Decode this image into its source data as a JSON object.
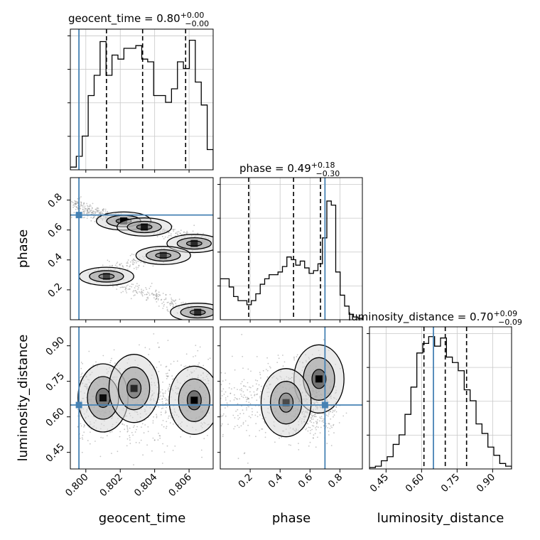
{
  "chart_data": {
    "type": "corner",
    "parameters": [
      "geocent_time",
      "phase",
      "luminosity_distance"
    ],
    "truths": {
      "geocent_time": 0.7996,
      "phase": 0.7,
      "luminosity_distance": 0.65
    },
    "truth_color": "#4682b4",
    "panel_titles": [
      {
        "text": "geocent_time = 0.80",
        "sup": "+0.00",
        "sub": "−0.00"
      },
      {
        "text": "phase = 0.49",
        "sup": "+0.18",
        "sub": "−0.30"
      },
      {
        "text": "luminosity_distance = 0.70",
        "sup": "+0.09",
        "sub": "−0.09"
      }
    ],
    "axis_labels": {
      "x": [
        "geocent_time",
        "phase",
        "luminosity_distance"
      ],
      "y": [
        "phase",
        "luminosity_distance"
      ]
    },
    "ranges": {
      "geocent_time": [
        0.7991,
        0.8074
      ],
      "phase": [
        0.0,
        0.95
      ],
      "luminosity_distance": [
        0.38,
        0.98
      ]
    },
    "ticks": {
      "geocent_time": [
        "0.800",
        "0.802",
        "0.804",
        "0.806"
      ],
      "phase": [
        "0.2",
        "0.4",
        "0.6",
        "0.8"
      ],
      "luminosity_distance": [
        "0.45",
        "0.60",
        "0.75",
        "0.90"
      ]
    },
    "quantiles": {
      "geocent_time": [
        0.8012,
        0.8033,
        0.8058
      ],
      "phase": [
        0.19,
        0.49,
        0.67
      ],
      "luminosity_distance": [
        0.61,
        0.7,
        0.79
      ]
    },
    "histograms": {
      "geocent_time": {
        "edges_start": 0.7991,
        "edges_end": 0.8074,
        "counts": [
          0.02,
          0.1,
          0.25,
          0.55,
          0.7,
          0.95,
          0.7,
          0.85,
          0.82,
          0.9,
          0.9,
          0.92,
          0.82,
          0.8,
          0.55,
          0.55,
          0.5,
          0.6,
          0.8,
          0.75,
          0.96,
          0.65,
          0.48,
          0.15
        ]
      },
      "phase": {
        "edges_start": 0.0,
        "edges_end": 0.95,
        "counts": [
          0.3,
          0.3,
          0.24,
          0.17,
          0.14,
          0.14,
          0.11,
          0.14,
          0.19,
          0.26,
          0.3,
          0.33,
          0.33,
          0.35,
          0.39,
          0.46,
          0.44,
          0.4,
          0.43,
          0.38,
          0.34,
          0.36,
          0.41,
          0.6,
          0.87,
          0.84,
          0.35,
          0.18,
          0.1,
          0.04,
          0.02,
          0.01
        ]
      },
      "luminosity_distance": {
        "edges_start": 0.38,
        "edges_end": 0.98,
        "counts": [
          0.01,
          0.02,
          0.06,
          0.09,
          0.18,
          0.25,
          0.4,
          0.6,
          0.85,
          0.92,
          0.97,
          0.9,
          0.96,
          0.82,
          0.78,
          0.72,
          0.58,
          0.5,
          0.33,
          0.26,
          0.16,
          0.1,
          0.04,
          0.02
        ]
      }
    },
    "density_peaks": {
      "phase_vs_geocent_time": [
        {
          "x": 0.8022,
          "y": 0.66,
          "w": 1.0
        },
        {
          "x": 0.8034,
          "y": 0.62,
          "w": 0.8
        },
        {
          "x": 0.8063,
          "y": 0.51,
          "w": 0.7
        },
        {
          "x": 0.8045,
          "y": 0.43,
          "w": 0.6
        },
        {
          "x": 0.8012,
          "y": 0.29,
          "w": 0.55
        },
        {
          "x": 0.8065,
          "y": 0.05,
          "w": 0.7
        }
      ],
      "luminosity_distance_vs_geocent_time": [
        {
          "x": 0.801,
          "y": 0.68,
          "w": 0.9
        },
        {
          "x": 0.8028,
          "y": 0.72,
          "w": 0.7
        },
        {
          "x": 0.8063,
          "y": 0.67,
          "w": 1.0
        }
      ],
      "luminosity_distance_vs_phase": [
        {
          "x": 0.66,
          "y": 0.76,
          "w": 1.0
        },
        {
          "x": 0.44,
          "y": 0.66,
          "w": 0.5
        }
      ]
    }
  }
}
